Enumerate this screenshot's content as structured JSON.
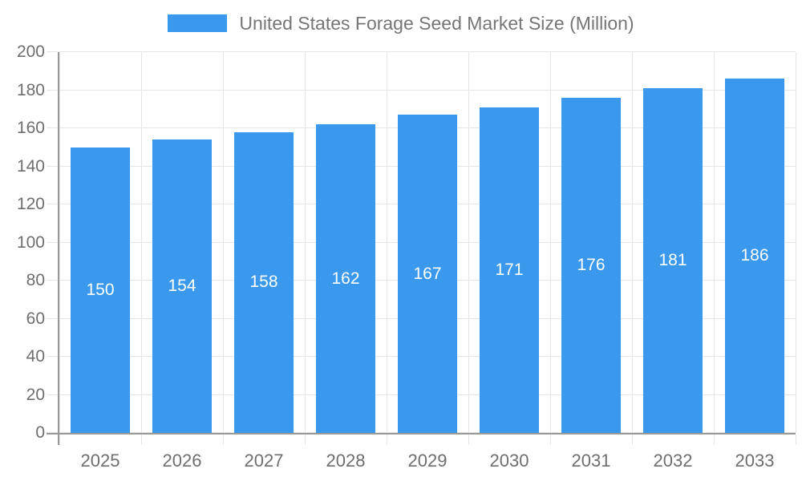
{
  "chart_data": {
    "type": "bar",
    "title": "United States Forage Seed Market Size (Million)",
    "series_name": "United States Forage Seed Market Size (Million)",
    "categories": [
      "2025",
      "2026",
      "2027",
      "2028",
      "2029",
      "2030",
      "2031",
      "2032",
      "2033"
    ],
    "values": [
      150,
      154,
      158,
      162,
      167,
      171,
      176,
      181,
      186
    ],
    "value_labels": [
      "150",
      "154",
      "158",
      "162",
      "167",
      "171",
      "176",
      "181",
      "186"
    ],
    "xlabel": "",
    "ylabel": "",
    "ylim": [
      0,
      200
    ],
    "yticks": [
      0,
      20,
      40,
      60,
      80,
      100,
      120,
      140,
      160,
      180,
      200
    ],
    "grid": true,
    "legend_position": "top-center",
    "colors": {
      "bar": "#3a99ec",
      "value_label": "#ffffff",
      "axis": "#999999",
      "grid": "#e6e6e6",
      "tick_label": "#6e6e6e",
      "legend_text": "#757575"
    }
  }
}
